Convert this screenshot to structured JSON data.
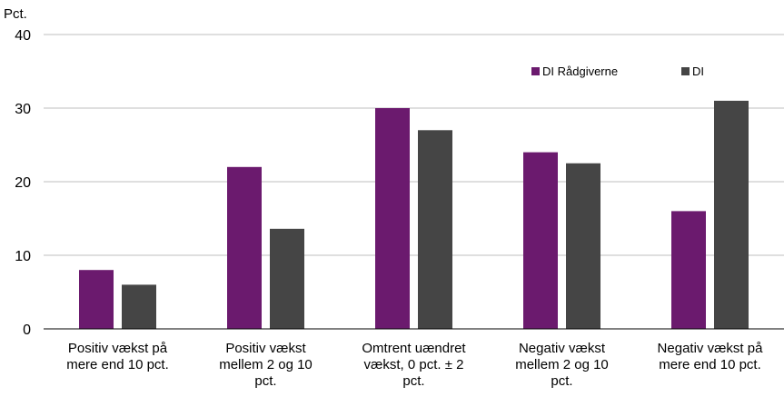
{
  "chart_data": {
    "type": "bar",
    "unit_label": "Pct.",
    "ylim": [
      0,
      40
    ],
    "yticks": [
      0,
      10,
      20,
      30,
      40
    ],
    "grid": true,
    "legend_position": "top-right",
    "categories": [
      [
        "Positiv vækst på",
        "mere end 10 pct."
      ],
      [
        "Positiv vækst",
        "mellem 2 og 10",
        "pct."
      ],
      [
        "Omtrent uændret",
        "vækst, 0 pct. ± 2",
        "pct."
      ],
      [
        "Negativ vækst",
        "mellem 2 og 10",
        "pct."
      ],
      [
        "Negativ vækst på",
        "mere end 10 pct."
      ]
    ],
    "series": [
      {
        "name": "DI Rådgiverne",
        "color": "#6B1A6E",
        "values": [
          8,
          22,
          30,
          24,
          16
        ]
      },
      {
        "name": "DI",
        "color": "#454545",
        "values": [
          6,
          13.6,
          27,
          22.5,
          31
        ]
      }
    ]
  }
}
